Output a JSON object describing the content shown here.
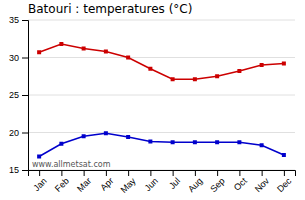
{
  "chart_data": {
    "type": "line",
    "title": "Batouri : temperatures (°C)",
    "categories": [
      "Jan",
      "Feb",
      "Mar",
      "Apr",
      "May",
      "Jun",
      "Jul",
      "Aug",
      "Sep",
      "Oct",
      "Nov",
      "Dec"
    ],
    "series": [
      {
        "color": "#cc0000",
        "marker": "square",
        "values": [
          30.7,
          31.8,
          31.2,
          30.8,
          30.0,
          28.5,
          27.1,
          27.1,
          27.5,
          28.2,
          29.0,
          29.2
        ]
      },
      {
        "color": "#0000cc",
        "marker": "square",
        "values": [
          16.8,
          18.5,
          19.5,
          19.9,
          19.4,
          18.8,
          18.7,
          18.7,
          18.7,
          18.7,
          18.3,
          17.0
        ]
      }
    ],
    "ylim": [
      15,
      35
    ],
    "yticks": [
      15,
      20,
      25,
      30,
      35
    ],
    "grid": "y",
    "annotations": [
      "www.allmetsat.com"
    ]
  }
}
